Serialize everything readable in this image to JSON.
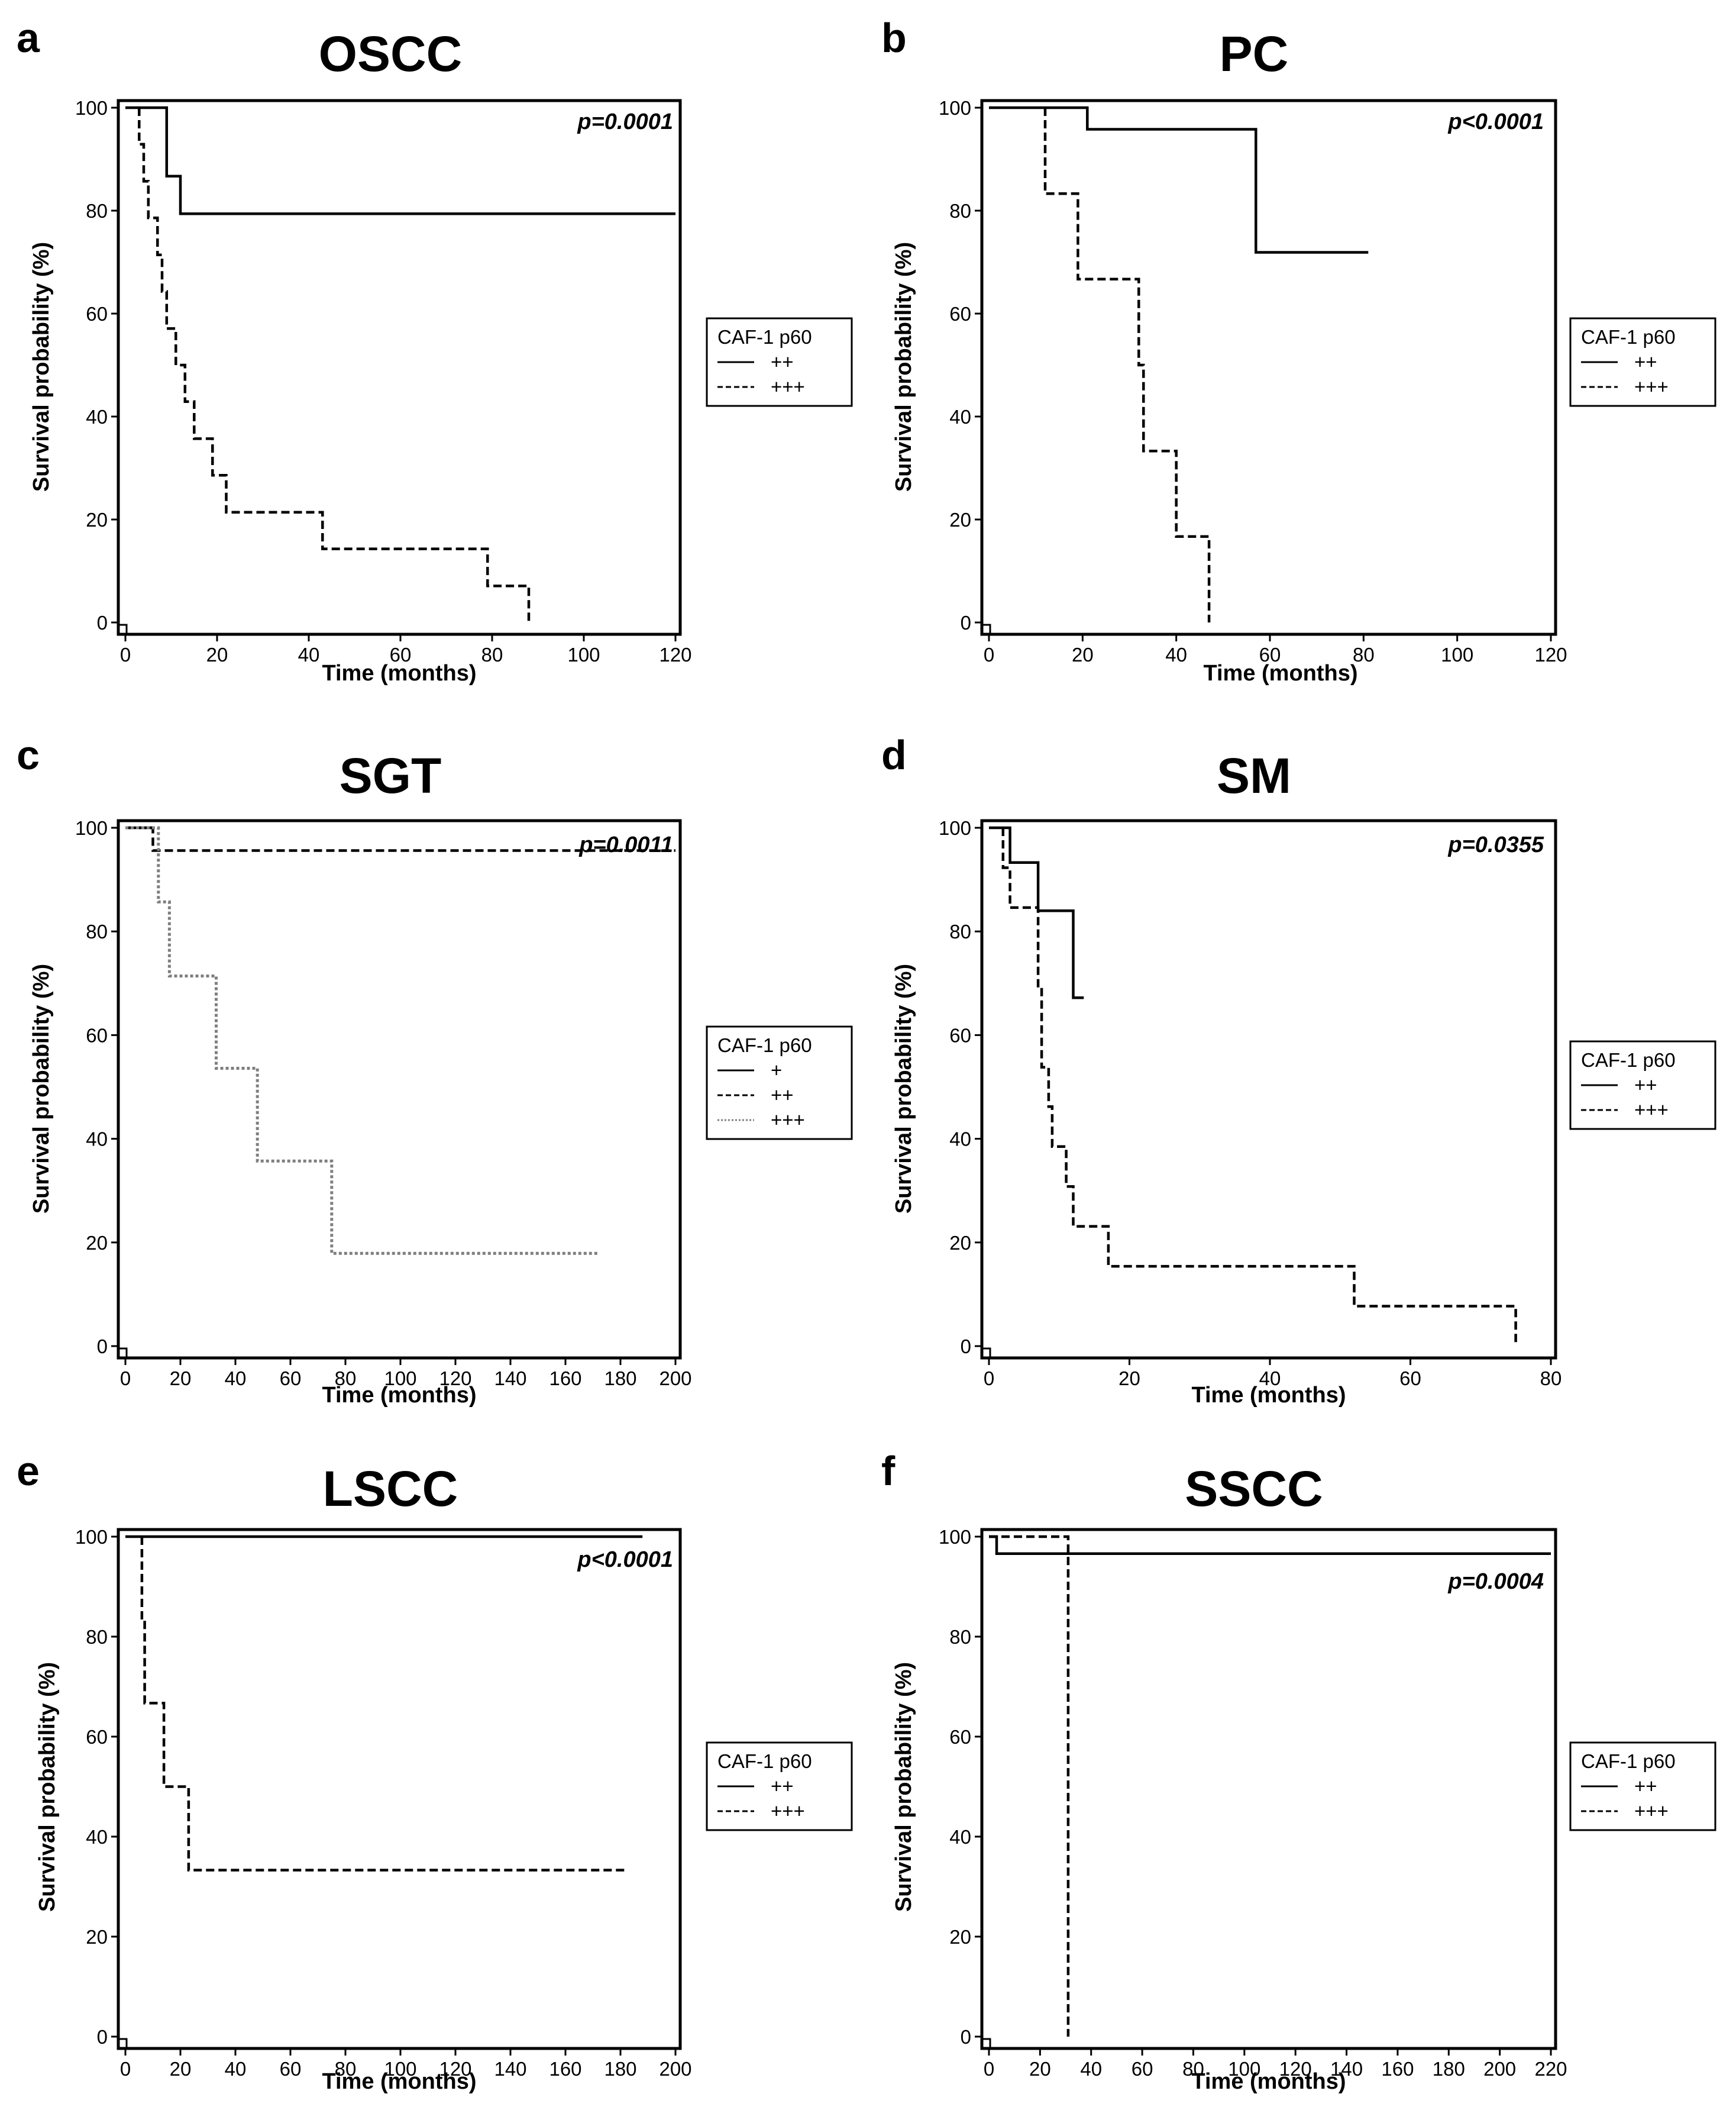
{
  "colors": {
    "line": "#000000",
    "dotted": "#7f7f7f",
    "background": "#ffffff"
  },
  "chart_data": [
    {
      "letter": "a",
      "title": "OSCC",
      "type": "line",
      "step": true,
      "xlabel": "Time (months)",
      "ylabel": "Survival probability (%)",
      "xlim": [
        0,
        120
      ],
      "ylim": [
        0,
        100
      ],
      "xticks": [
        0,
        20,
        40,
        60,
        80,
        100,
        120
      ],
      "yticks": [
        0,
        20,
        40,
        60,
        80,
        100
      ],
      "p_value": "p=0.0001",
      "legend_title": "CAF-1 p60",
      "series": [
        {
          "name": "++",
          "style": "solid",
          "x": [
            0,
            9,
            9,
            12,
            12,
            120
          ],
          "y": [
            100,
            100,
            86.7,
            86.7,
            79.4,
            79.4
          ]
        },
        {
          "name": "+++",
          "style": "dashed",
          "x": [
            3,
            3,
            4,
            4,
            5,
            5,
            7,
            7,
            8,
            8,
            9,
            9,
            11,
            11,
            13,
            13,
            15,
            15,
            19,
            19,
            22,
            22,
            43,
            43,
            79,
            79,
            88,
            88
          ],
          "y": [
            100,
            92.9,
            92.9,
            85.7,
            85.7,
            78.6,
            78.6,
            71.4,
            71.4,
            64.3,
            64.3,
            57.1,
            57.1,
            50,
            50,
            42.9,
            42.9,
            35.7,
            35.7,
            28.6,
            28.6,
            21.4,
            21.4,
            14.3,
            14.3,
            7.1,
            7.1,
            0
          ]
        }
      ]
    },
    {
      "letter": "b",
      "title": "PC",
      "type": "line",
      "step": true,
      "xlabel": "Time (months)",
      "ylabel": "Survival probability (%)",
      "xlim": [
        0,
        120
      ],
      "ylim": [
        0,
        100
      ],
      "xticks": [
        0,
        20,
        40,
        60,
        80,
        100,
        120
      ],
      "yticks": [
        0,
        20,
        40,
        60,
        80,
        100
      ],
      "p_value": "p<0.0001",
      "legend_title": "CAF-1 p60",
      "series": [
        {
          "name": "++",
          "style": "solid",
          "x": [
            0,
            21,
            21,
            57,
            57,
            81
          ],
          "y": [
            100,
            100,
            95.8,
            95.8,
            71.9,
            71.9
          ]
        },
        {
          "name": "+++",
          "style": "dashed",
          "x": [
            12,
            12,
            19,
            19,
            32,
            32,
            33,
            33,
            40,
            40,
            47,
            47
          ],
          "y": [
            100,
            83.3,
            83.3,
            66.7,
            66.7,
            50,
            50,
            33.3,
            33.3,
            16.7,
            16.7,
            0
          ]
        }
      ]
    },
    {
      "letter": "c",
      "title": "SGT",
      "type": "line",
      "step": true,
      "xlabel": "Time (months)",
      "ylabel": "Survival probability (%)",
      "xlim": [
        0,
        200
      ],
      "ylim": [
        0,
        100
      ],
      "xticks": [
        0,
        20,
        40,
        60,
        80,
        100,
        120,
        140,
        160,
        180,
        200
      ],
      "yticks": [
        0,
        20,
        40,
        60,
        80,
        100
      ],
      "p_value": "p=0.0011",
      "legend_title": "CAF-1 p60",
      "series": [
        {
          "name": "+",
          "style": "solid",
          "x": [
            0,
            10
          ],
          "y": [
            100,
            100
          ]
        },
        {
          "name": "++",
          "style": "dashed",
          "x": [
            0,
            10,
            10,
            200
          ],
          "y": [
            100,
            100,
            95.6,
            95.6
          ]
        },
        {
          "name": "+++",
          "style": "dotted",
          "x": [
            0,
            12,
            12,
            16,
            16,
            33,
            33,
            48,
            48,
            75,
            75,
            172
          ],
          "y": [
            100,
            100,
            85.7,
            85.7,
            71.4,
            71.4,
            53.6,
            53.6,
            35.7,
            35.7,
            17.9,
            17.9
          ]
        }
      ]
    },
    {
      "letter": "d",
      "title": "SM",
      "type": "line",
      "step": true,
      "xlabel": "Time (months)",
      "ylabel": "Survival probability (%)",
      "xlim": [
        0,
        80
      ],
      "ylim": [
        0,
        100
      ],
      "xticks": [
        0,
        20,
        40,
        60,
        80
      ],
      "yticks": [
        0,
        20,
        40,
        60,
        80,
        100
      ],
      "p_value": "p=0.0355",
      "legend_title": "CAF-1 p60",
      "series": [
        {
          "name": "++",
          "style": "solid",
          "x": [
            0,
            3,
            3,
            7,
            7,
            12,
            12,
            13.5
          ],
          "y": [
            100,
            100,
            93.3,
            93.3,
            84,
            84,
            67.2,
            67.2
          ]
        },
        {
          "name": "+++",
          "style": "dashed",
          "x": [
            2,
            2,
            3,
            3,
            7,
            7,
            7.5,
            7.5,
            8.5,
            8.5,
            9,
            9,
            11,
            11,
            12,
            12,
            17,
            17,
            52,
            52,
            75,
            75
          ],
          "y": [
            100,
            92.3,
            92.3,
            84.6,
            84.6,
            69.2,
            69.2,
            53.8,
            53.8,
            46.2,
            46.2,
            38.5,
            38.5,
            30.8,
            30.8,
            23.1,
            23.1,
            15.4,
            15.4,
            7.7,
            7.7,
            0
          ]
        }
      ]
    },
    {
      "letter": "e",
      "title": "LSCC",
      "type": "line",
      "step": true,
      "xlabel": "Time (months)",
      "ylabel": "Survival probability (%)",
      "xlim": [
        0,
        200
      ],
      "ylim": [
        0,
        100
      ],
      "xticks": [
        0,
        20,
        40,
        60,
        80,
        100,
        120,
        140,
        160,
        180,
        200
      ],
      "yticks": [
        0,
        20,
        40,
        60,
        80,
        100
      ],
      "p_value": "p<0.0001",
      "legend_title": "CAF-1 p60",
      "series": [
        {
          "name": "++",
          "style": "solid",
          "x": [
            0,
            188
          ],
          "y": [
            100,
            100
          ]
        },
        {
          "name": "+++",
          "style": "dashed",
          "x": [
            6,
            6,
            7,
            7,
            14,
            14,
            23,
            23,
            182
          ],
          "y": [
            100,
            83.3,
            83.3,
            66.7,
            66.7,
            50,
            50,
            33.3,
            33.3
          ]
        }
      ]
    },
    {
      "letter": "f",
      "title": "SSCC",
      "type": "line",
      "step": true,
      "xlabel": "Time (months)",
      "ylabel": "Survival probability (%)",
      "xlim": [
        0,
        220
      ],
      "ylim": [
        0,
        100
      ],
      "xticks": [
        0,
        20,
        40,
        60,
        80,
        100,
        120,
        140,
        160,
        180,
        200,
        220
      ],
      "yticks": [
        0,
        20,
        40,
        60,
        80,
        100
      ],
      "p_value": "p=0.0004",
      "legend_title": "CAF-1 p60",
      "series": [
        {
          "name": "++",
          "style": "solid",
          "x": [
            0,
            3,
            3,
            220
          ],
          "y": [
            100,
            100,
            96.6,
            96.6
          ]
        },
        {
          "name": "+++",
          "style": "dashed",
          "x": [
            0,
            31,
            31
          ],
          "y": [
            100,
            100,
            0
          ]
        }
      ]
    }
  ]
}
